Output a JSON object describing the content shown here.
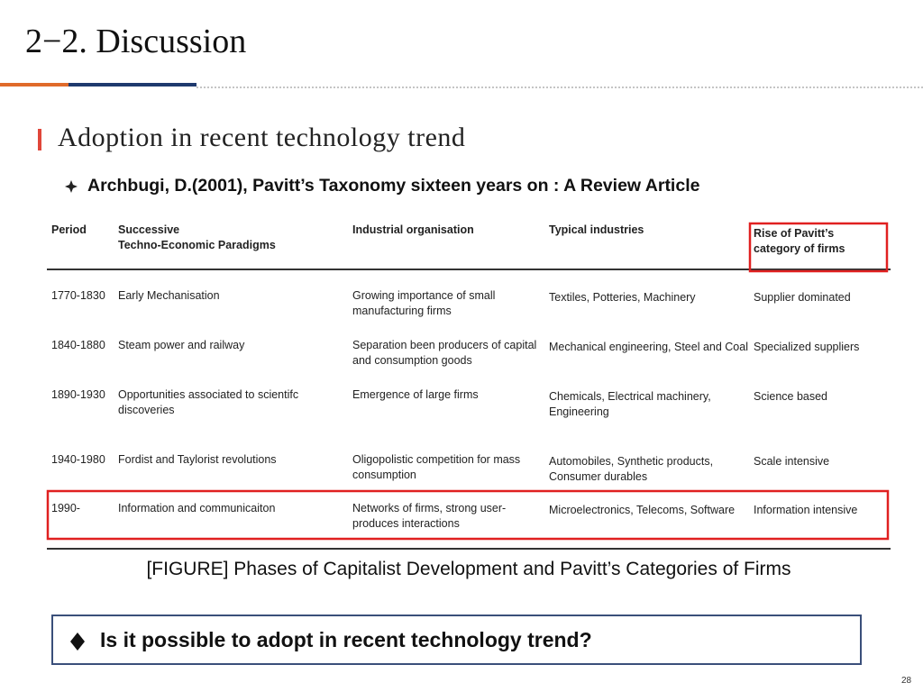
{
  "header": {
    "title": "2−2. Discussion"
  },
  "section": {
    "title": "Adoption in recent technology trend"
  },
  "reference": "Archbugi, D.(2001), Pavitt’s Taxonomy sixteen years on : A Review Article",
  "table": {
    "columns": [
      "Period",
      "Successive\nTechno-Economic Paradigms",
      "Industrial organisation",
      "Typical industries",
      "Rise of Pavitt’s\ncategory of firms"
    ],
    "rows": [
      [
        "1770-1830",
        "Early Mechanisation",
        "Growing importance of small manufacturing firms",
        "Textiles, Potteries, Machinery",
        "Supplier dominated"
      ],
      [
        "1840-1880",
        "Steam power and railway",
        "Separation been producers of capital and consumption goods",
        "Mechanical engineering, Steel and Coal",
        "Specialized suppliers"
      ],
      [
        "1890-1930",
        "Opportunities associated to scientifc discoveries",
        "Emergence of large firms",
        "Chemicals,  Electrical machinery, Engineering",
        "Science based"
      ],
      [
        "1940-1980",
        "Fordist and Taylorist revolutions",
        "Oligopolistic competition for mass consumption",
        "Automobiles, Synthetic products, Consumer durables",
        "Scale intensive"
      ],
      [
        "1990-",
        "Information and communicaiton",
        "Networks of firms, strong user-produces interactions",
        "Microelectronics, Telecoms, Software",
        "Information intensive"
      ]
    ]
  },
  "caption": "[FIGURE] Phases of Capitalist Development and Pavitt’s Categories of Firms",
  "question": "Is it possible to adopt in recent technology trend?",
  "page_number": "28"
}
